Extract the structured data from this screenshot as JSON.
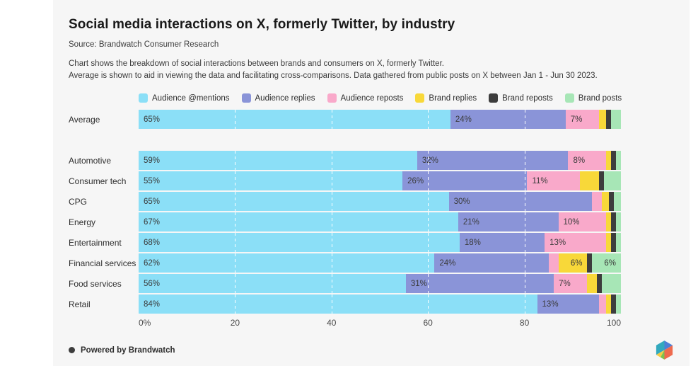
{
  "header": {
    "title": "Social media interactions on X, formerly Twitter, by industry",
    "source": "Source: Brandwatch Consumer Research",
    "description_line1": "Chart shows the breakdown of social interactions between brands and consumers on X, formerly Twitter.",
    "description_line2": "Average is shown to aid in viewing the data and facilitating cross-comparisons. Data gathered from public posts on X between Jan 1 - Jun 30 2023."
  },
  "colors": {
    "card_background": "#f6f6f6",
    "page_background": "#ffffff",
    "bar_label_text": "#3a3a3a",
    "gridline": "#ffffff"
  },
  "chart_data": {
    "type": "bar",
    "orientation": "horizontal",
    "stacked": true,
    "unit": "%",
    "xlim": [
      0,
      100
    ],
    "x_ticks": [
      "0%",
      "20",
      "40",
      "60",
      "80",
      "100"
    ],
    "x_tick_positions": [
      0,
      20,
      40,
      60,
      80,
      100
    ],
    "grid_ticks": [
      20,
      40,
      60,
      80
    ],
    "legend_position": "top",
    "legend": [
      {
        "name": "Audience @mentions",
        "color": "#8bdff7"
      },
      {
        "name": "Audience replies",
        "color": "#8a94d8"
      },
      {
        "name": "Audience reposts",
        "color": "#f9a9ca"
      },
      {
        "name": "Brand replies",
        "color": "#f8d839"
      },
      {
        "name": "Brand reposts",
        "color": "#3d3d3d"
      },
      {
        "name": "Brand posts",
        "color": "#a7e6b6"
      }
    ],
    "categories": [
      "Average",
      "Automotive",
      "Consumer tech",
      "CPG",
      "Energy",
      "Entertainment",
      "Financial services",
      "Food services",
      "Retail"
    ],
    "rows": [
      {
        "label": "Average",
        "gap_after": true,
        "segments": [
          {
            "value": 65,
            "label": "65%"
          },
          {
            "value": 24,
            "label": "24%"
          },
          {
            "value": 7,
            "label": "7%"
          },
          {
            "value": 1.5
          },
          {
            "value": 0.5
          },
          {
            "value": 2
          }
        ]
      },
      {
        "label": "Automotive",
        "segments": [
          {
            "value": 59,
            "label": "59%"
          },
          {
            "value": 32,
            "label": "32%"
          },
          {
            "value": 8,
            "label": "8%"
          },
          {
            "value": 0.5
          },
          {
            "value": 0
          },
          {
            "value": 0.5
          }
        ]
      },
      {
        "label": "Consumer tech",
        "segments": [
          {
            "value": 55,
            "label": "55%"
          },
          {
            "value": 26,
            "label": "26%"
          },
          {
            "value": 11,
            "label": "11%"
          },
          {
            "value": 4
          },
          {
            "value": 0.5
          },
          {
            "value": 3.5
          }
        ]
      },
      {
        "label": "CPG",
        "segments": [
          {
            "value": 65,
            "label": "65%"
          },
          {
            "value": 30,
            "label": "30%"
          },
          {
            "value": 2
          },
          {
            "value": 1.5
          },
          {
            "value": 0
          },
          {
            "value": 1.5
          }
        ]
      },
      {
        "label": "Energy",
        "segments": [
          {
            "value": 67,
            "label": "67%"
          },
          {
            "value": 21,
            "label": "21%"
          },
          {
            "value": 10,
            "label": "10%"
          },
          {
            "value": 0.5
          },
          {
            "value": 0.5
          },
          {
            "value": 1
          }
        ]
      },
      {
        "label": "Entertainment",
        "segments": [
          {
            "value": 68,
            "label": "68%"
          },
          {
            "value": 18,
            "label": "18%"
          },
          {
            "value": 13,
            "label": "13%"
          },
          {
            "value": 0.5
          },
          {
            "value": 0
          },
          {
            "value": 0.5
          }
        ]
      },
      {
        "label": "Financial services",
        "segments": [
          {
            "value": 62,
            "label": "62%"
          },
          {
            "value": 24,
            "label": "24%"
          },
          {
            "value": 2
          },
          {
            "value": 6,
            "label": "6%",
            "label_align": "right"
          },
          {
            "value": 0
          },
          {
            "value": 6,
            "label": "6%",
            "label_align": "right"
          }
        ]
      },
      {
        "label": "Food services",
        "segments": [
          {
            "value": 56,
            "label": "56%"
          },
          {
            "value": 31,
            "label": "31%"
          },
          {
            "value": 7,
            "label": "7%"
          },
          {
            "value": 2
          },
          {
            "value": 0
          },
          {
            "value": 4
          }
        ]
      },
      {
        "label": "Retail",
        "segments": [
          {
            "value": 84,
            "label": "84%"
          },
          {
            "value": 13,
            "label": "13%"
          },
          {
            "value": 1.5
          },
          {
            "value": 1
          },
          {
            "value": 0
          },
          {
            "value": 0.5
          }
        ]
      }
    ]
  },
  "footer": {
    "powered_by": "Powered by Brandwatch"
  }
}
